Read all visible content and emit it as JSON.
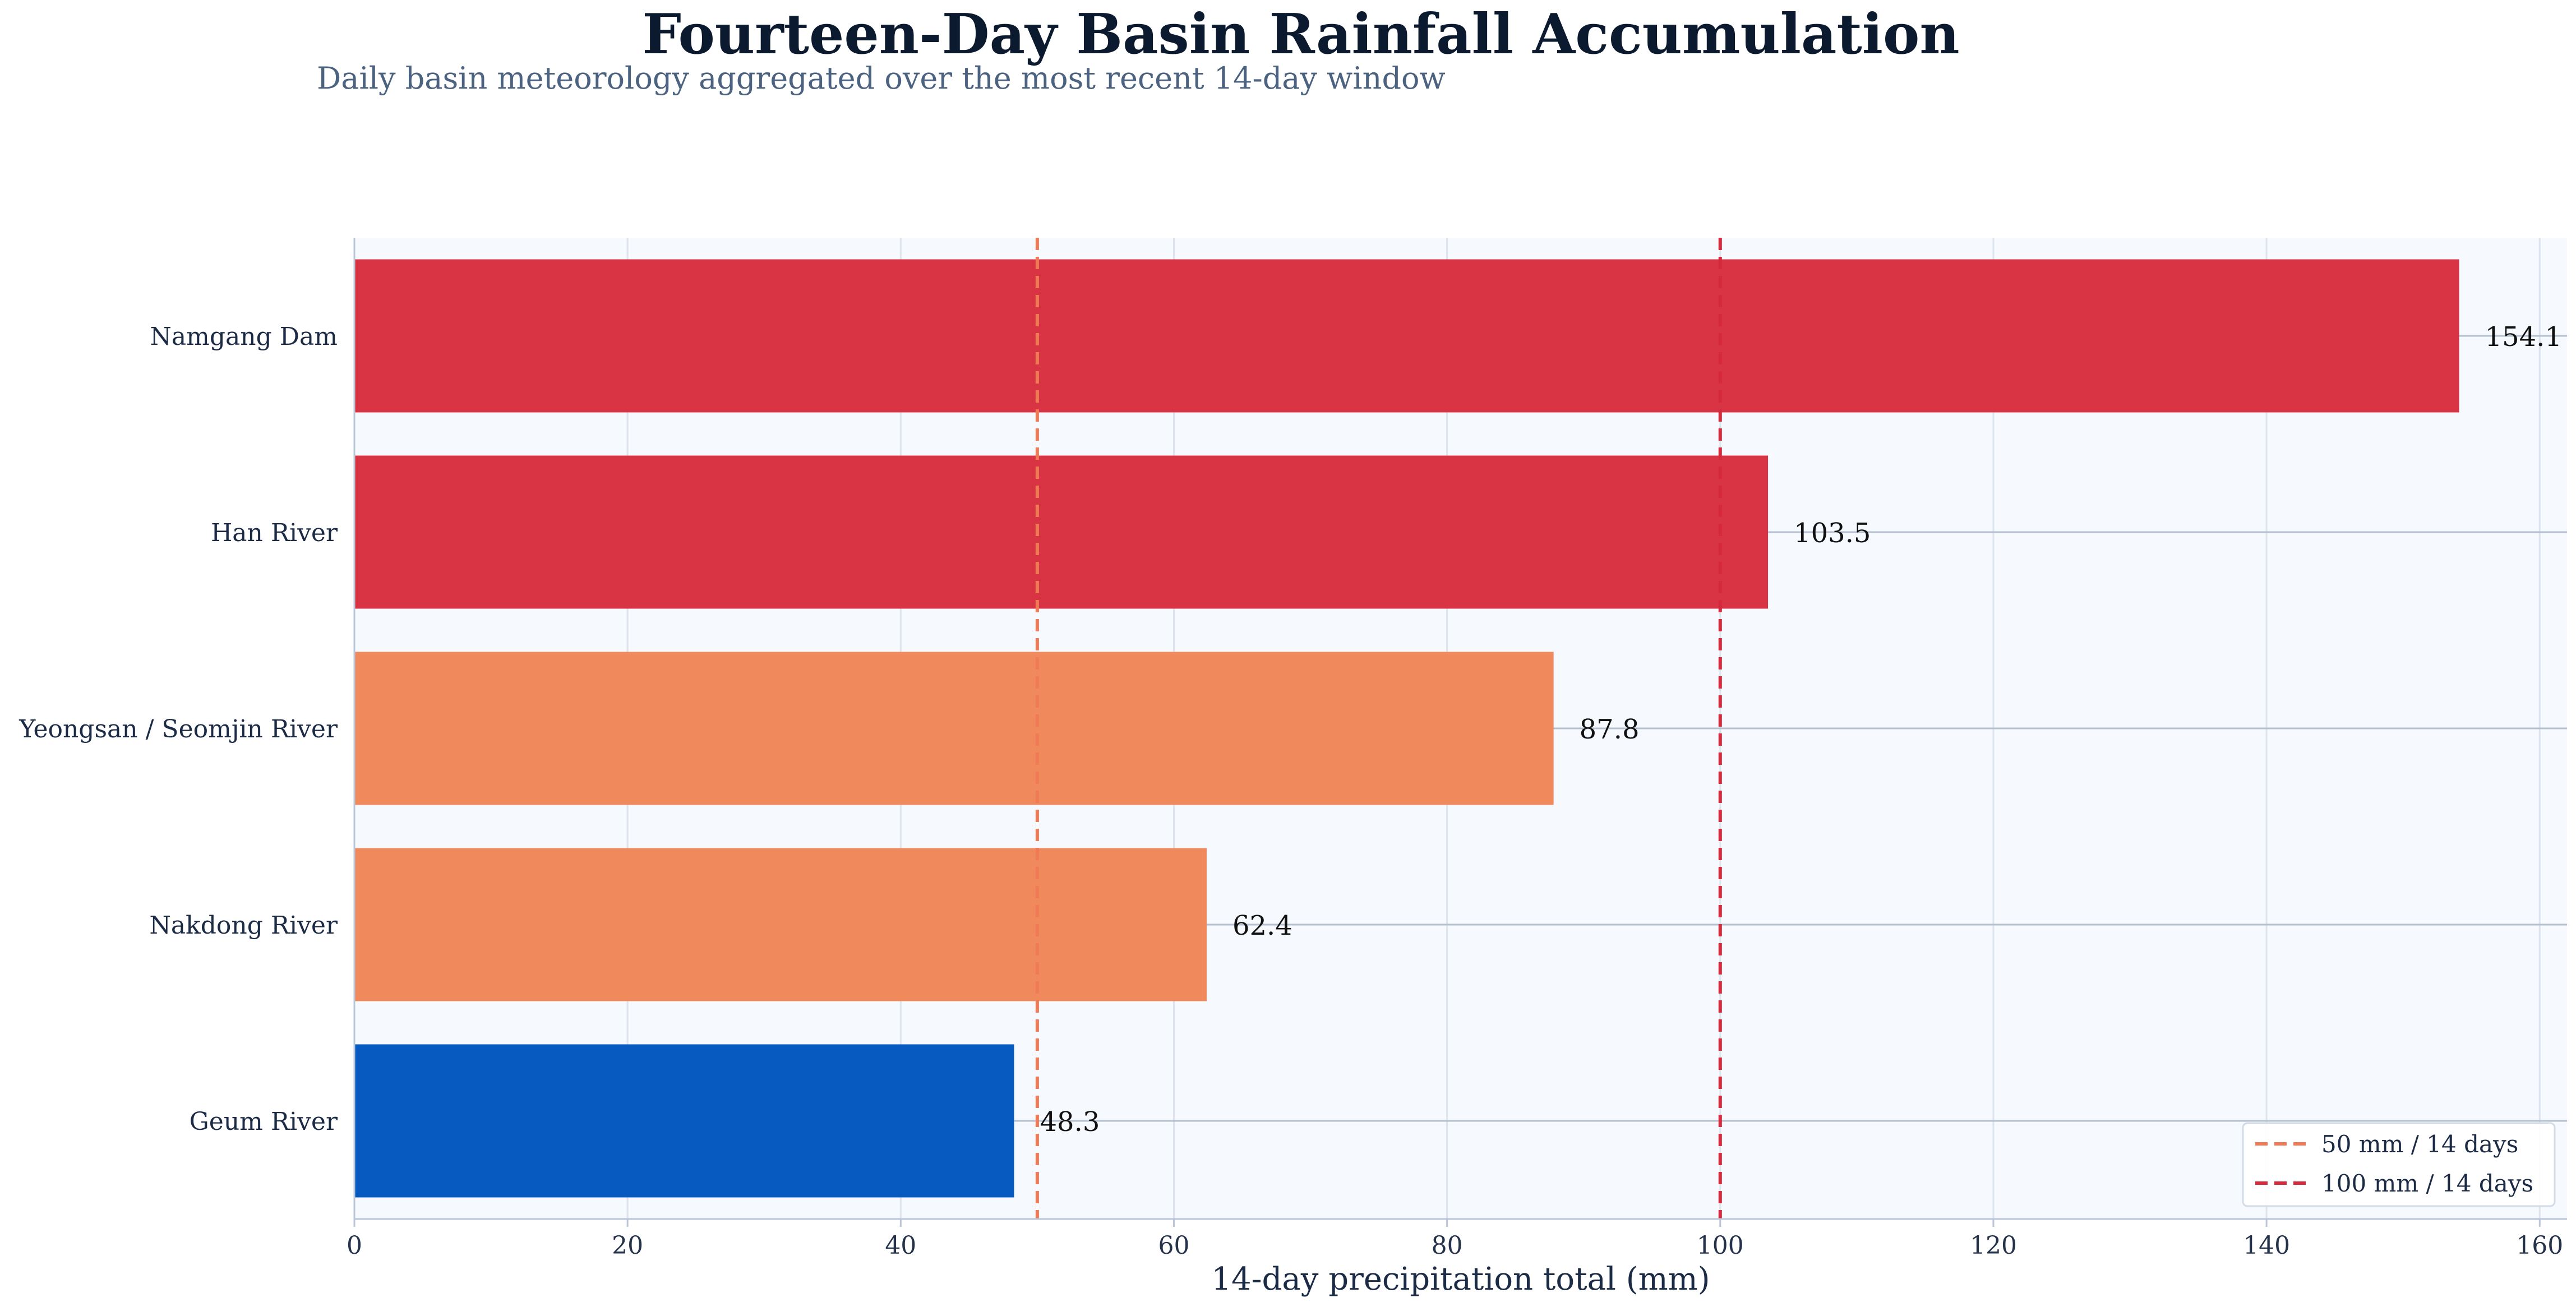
{
  "chart_data": {
    "type": "bar",
    "orientation": "horizontal",
    "title": "Fourteen-Day Basin Rainfall Accumulation",
    "subtitle": "Daily basin meteorology aggregated over the most recent 14-day window",
    "xlabel": "14-day precipitation total (mm)",
    "xlim": [
      0,
      162
    ],
    "xticks": [
      0,
      20,
      40,
      60,
      80,
      100,
      120,
      140,
      160
    ],
    "grid": true,
    "legend_position": "bottom-right",
    "categories": [
      "Namgang Dam",
      "Han River",
      "Yeongsan / Seomjin River",
      "Nakdong River",
      "Geum River"
    ],
    "values": [
      154.1,
      103.5,
      87.8,
      62.4,
      48.3
    ],
    "value_labels": [
      "154.1",
      "103.5",
      "87.8",
      "62.4",
      "48.3"
    ],
    "bar_colors": [
      "#d93444",
      "#d93444",
      "#f08a5d",
      "#f08a5d",
      "#075ac0"
    ],
    "thresholds": [
      {
        "value": 50,
        "label": "50 mm / 14 days",
        "color": "#f07a55"
      },
      {
        "value": 100,
        "label": "100 mm / 14 days",
        "color": "#d6293c"
      }
    ]
  }
}
